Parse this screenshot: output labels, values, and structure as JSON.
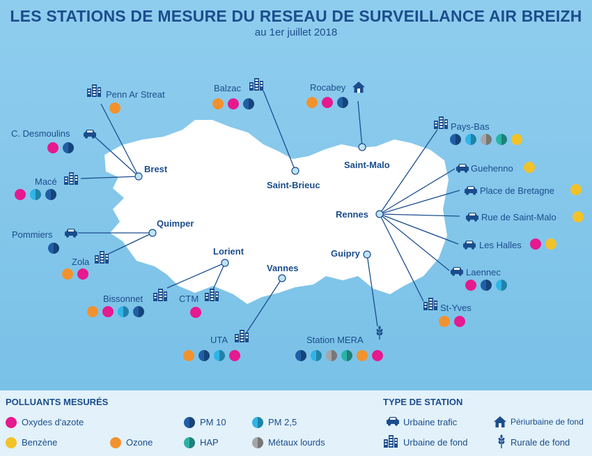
{
  "title": "LES STATIONS DE MESURE DU RESEAU DE SURVEILLANCE AIR BREIZH",
  "subtitle": "au 1er  juillet 2018",
  "colors": {
    "nox": "#e6198f",
    "benzene": "#f2c229",
    "ozone": "#f2922e",
    "pm10": "#1f5fa6",
    "pm25": "#2fb4e8",
    "hap": "#2ab3a6",
    "metaux": "#a6a6a6",
    "primary": "#1b4d8c"
  },
  "cities": {
    "brest": "Brest",
    "saint_brieuc": "Saint-Brieuc",
    "saint_malo": "Saint-Malo",
    "rennes": "Rennes",
    "quimper": "Quimper",
    "lorient": "Lorient",
    "vannes": "Vannes",
    "guipry": "Guipry"
  },
  "stations": {
    "penn_ar_streat": {
      "name": "Penn Ar Streat",
      "type": "urbaine-fond",
      "pollutants": [
        "ozone"
      ]
    },
    "c_desmoulins": {
      "name": "C. Desmoulins",
      "type": "urbaine-trafic",
      "pollutants": [
        "nox",
        "pm10"
      ]
    },
    "mace": {
      "name": "Macé",
      "type": "urbaine-fond",
      "pollutants": [
        "nox",
        "pm25",
        "pm10"
      ]
    },
    "balzac": {
      "name": "Balzac",
      "type": "urbaine-fond",
      "pollutants": [
        "ozone",
        "nox",
        "pm10"
      ]
    },
    "rocabey": {
      "name": "Rocabey",
      "type": "periurbaine-fond",
      "pollutants": [
        "ozone",
        "nox",
        "pm10"
      ]
    },
    "pays_bas": {
      "name": "Pays-Bas",
      "type": "urbaine-fond",
      "pollutants": [
        "pm10",
        "pm25",
        "metaux",
        "hap",
        "benzene"
      ]
    },
    "guehenno": {
      "name": "Guehenno",
      "type": "urbaine-trafic",
      "pollutants": [
        "benzene"
      ]
    },
    "place_de_bretagne": {
      "name": "Place de Bretagne",
      "type": "urbaine-trafic",
      "pollutants": [
        "benzene"
      ]
    },
    "rue_de_saint_malo": {
      "name": "Rue de Saint-Malo",
      "type": "urbaine-trafic",
      "pollutants": [
        "benzene"
      ]
    },
    "les_halles": {
      "name": "Les Halles",
      "type": "urbaine-trafic",
      "pollutants": [
        "nox",
        "benzene"
      ]
    },
    "laennec": {
      "name": "Laennec",
      "type": "urbaine-trafic",
      "pollutants": [
        "nox",
        "pm10",
        "pm25"
      ]
    },
    "st_yves": {
      "name": "St-Yves",
      "type": "urbaine-fond",
      "pollutants": [
        "ozone",
        "nox"
      ]
    },
    "station_mera": {
      "name": "Station MERA",
      "type": "rurale-fond",
      "pollutants": [
        "pm10",
        "pm25",
        "metaux",
        "hap",
        "ozone",
        "nox"
      ]
    },
    "uta": {
      "name": "UTA",
      "type": "urbaine-fond",
      "pollutants": [
        "ozone",
        "pm10",
        "pm25",
        "nox"
      ]
    },
    "ctm": {
      "name": "CTM",
      "type": "urbaine-fond",
      "pollutants": [
        "nox"
      ]
    },
    "bissonnet": {
      "name": "Bissonnet",
      "type": "urbaine-fond",
      "pollutants": [
        "ozone",
        "nox",
        "pm25",
        "pm10"
      ]
    },
    "zola": {
      "name": "Zola",
      "type": "urbaine-fond",
      "pollutants": [
        "ozone",
        "nox"
      ]
    },
    "pommiers": {
      "name": "Pommiers",
      "type": "urbaine-trafic",
      "pollutants": [
        "pm10"
      ]
    }
  },
  "legend": {
    "pollutants_title": "POLLUANTS MESURÉS",
    "station_title": "TYPE DE STATION",
    "nox": "Oxydes d'azote",
    "benzene": "Benzène",
    "ozone": "Ozone",
    "pm10": "PM 10",
    "pm25": "PM 2,5",
    "hap": "HAP",
    "metaux": "Métaux lourds",
    "urbaine_trafic": "Urbaine trafic",
    "urbaine_fond": "Urbaine de fond",
    "periurbaine_fond": "Périurbaine de fond",
    "rurale_fond": "Rurale de fond"
  }
}
